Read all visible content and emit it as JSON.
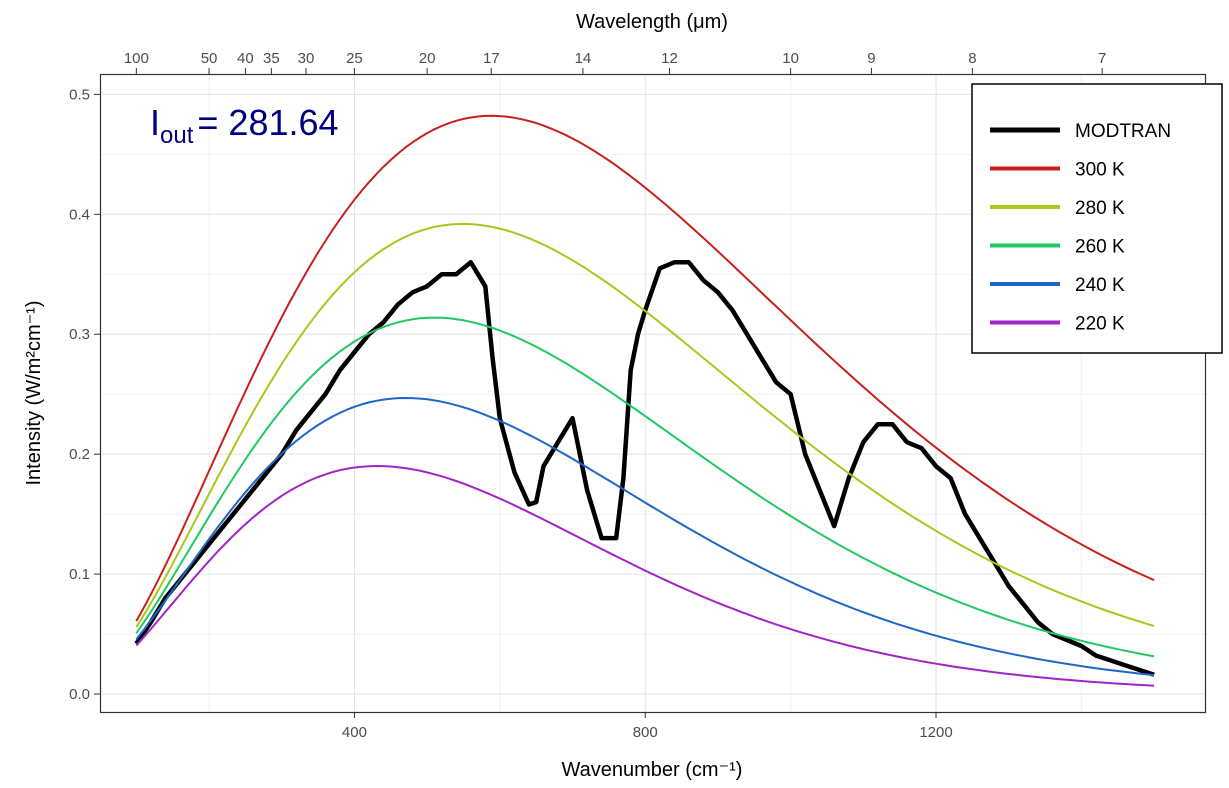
{
  "chart_data": {
    "type": "line",
    "xlabel": "Wavenumber (cm⁻¹)",
    "top_xlabel": "Wavelength (μm)",
    "ylabel": "Intensity (W/m²cm⁻¹)",
    "xlim": [
      100,
      1500
    ],
    "ylim": [
      0,
      0.5
    ],
    "grid": true,
    "legend_position": "top-right",
    "x_ticks": [
      400,
      800,
      1200
    ],
    "y_ticks": [
      0.0,
      0.1,
      0.2,
      0.3,
      0.4,
      0.5
    ],
    "y_tick_labels": [
      "0.0",
      "0.1",
      "0.2",
      "0.3",
      "0.4",
      "0.5"
    ],
    "top_ticks_um": [
      100,
      50,
      40,
      35,
      30,
      25,
      20,
      17,
      14,
      12,
      10,
      9,
      8,
      7
    ],
    "annotation": {
      "symbol": "I",
      "subscript": "out",
      "text": "= 281.64"
    },
    "series": [
      {
        "name": "MODTRAN",
        "color": "#000000",
        "x": [
          100,
          120,
          140,
          160,
          180,
          200,
          220,
          240,
          260,
          280,
          300,
          320,
          340,
          360,
          380,
          400,
          420,
          440,
          460,
          480,
          500,
          520,
          540,
          560,
          580,
          590,
          600,
          620,
          640,
          650,
          660,
          680,
          700,
          720,
          740,
          760,
          770,
          780,
          790,
          800,
          820,
          840,
          860,
          880,
          900,
          920,
          940,
          960,
          980,
          1000,
          1020,
          1040,
          1060,
          1080,
          1100,
          1120,
          1140,
          1160,
          1180,
          1200,
          1220,
          1240,
          1260,
          1280,
          1300,
          1320,
          1340,
          1360,
          1380,
          1400,
          1420,
          1440,
          1460,
          1480,
          1500
        ],
        "y": [
          0.042,
          0.06,
          0.08,
          0.095,
          0.11,
          0.125,
          0.14,
          0.155,
          0.17,
          0.185,
          0.2,
          0.22,
          0.235,
          0.25,
          0.27,
          0.285,
          0.3,
          0.31,
          0.325,
          0.335,
          0.34,
          0.35,
          0.35,
          0.36,
          0.34,
          0.28,
          0.23,
          0.185,
          0.158,
          0.16,
          0.19,
          0.21,
          0.23,
          0.17,
          0.13,
          0.13,
          0.18,
          0.27,
          0.3,
          0.32,
          0.355,
          0.36,
          0.36,
          0.345,
          0.335,
          0.32,
          0.3,
          0.28,
          0.26,
          0.25,
          0.2,
          0.17,
          0.14,
          0.18,
          0.21,
          0.225,
          0.225,
          0.21,
          0.205,
          0.19,
          0.18,
          0.15,
          0.13,
          0.11,
          0.09,
          0.075,
          0.06,
          0.05,
          0.045,
          0.04,
          0.032,
          0.028,
          0.024,
          0.02,
          0.016
        ]
      },
      {
        "name": "300 K",
        "color": "#C8201E",
        "temperature_K": 300
      },
      {
        "name": "280 K",
        "color": "#A8C81E",
        "temperature_K": 280
      },
      {
        "name": "260 K",
        "color": "#22C864",
        "temperature_K": 260
      },
      {
        "name": "240 K",
        "color": "#1F66C8",
        "temperature_K": 240
      },
      {
        "name": "220 K",
        "color": "#A224C8",
        "temperature_K": 220
      }
    ]
  }
}
